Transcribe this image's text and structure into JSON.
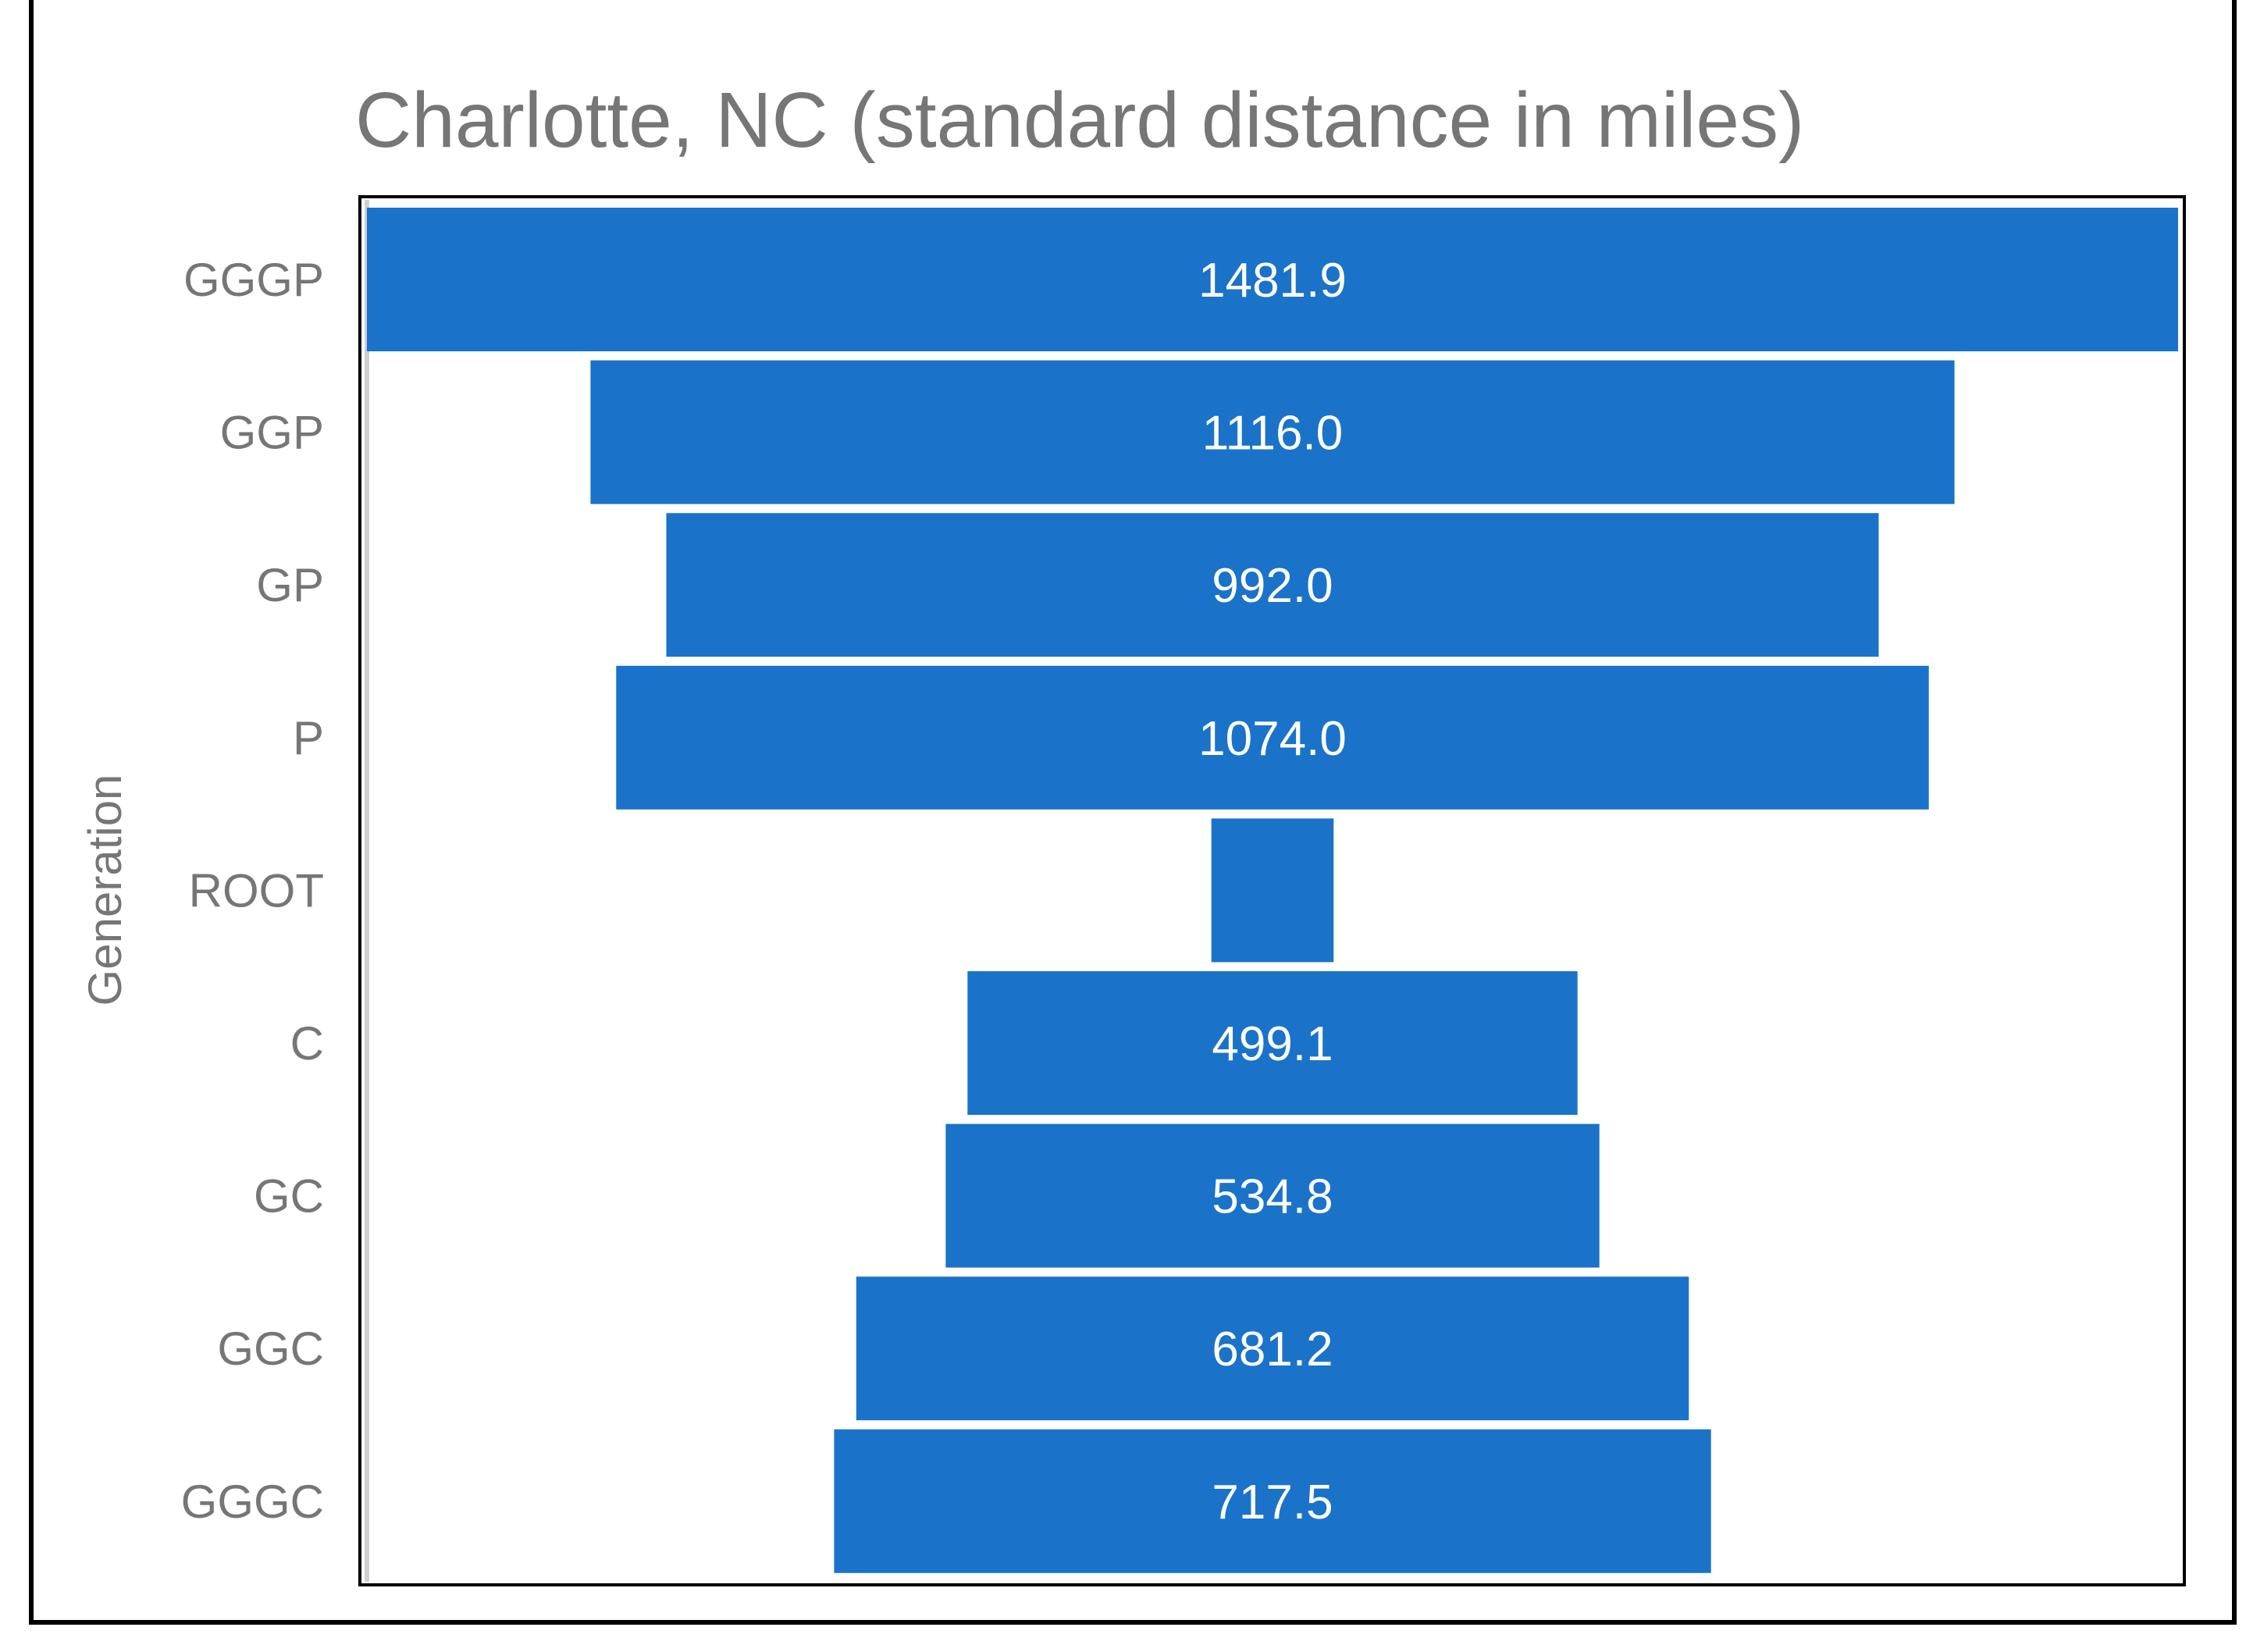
{
  "chart_data": {
    "type": "bar",
    "subtype": "funnel",
    "title": "Charlotte, NC (standard distance in miles)",
    "xlabel": "",
    "ylabel": "Generation",
    "categories": [
      "GGGP",
      "GGP",
      "GP",
      "P",
      "ROOT",
      "C",
      "GC",
      "GGC",
      "GGGC"
    ],
    "values": [
      1481.9,
      1116.0,
      992.0,
      1074.0,
      100.0,
      499.1,
      534.8,
      681.2,
      717.5
    ],
    "data_labels": [
      "1481.9",
      "1116.0",
      "992.0",
      "1074.0",
      "",
      "499.1",
      "534.8",
      "681.2",
      "717.5"
    ],
    "xlim": [
      0,
      1481.9
    ],
    "grid": false,
    "legend": "none",
    "colors": {
      "bar": "#1A73C8",
      "text": "#767676",
      "label": "#ffffff",
      "frame": "#000000"
    }
  }
}
